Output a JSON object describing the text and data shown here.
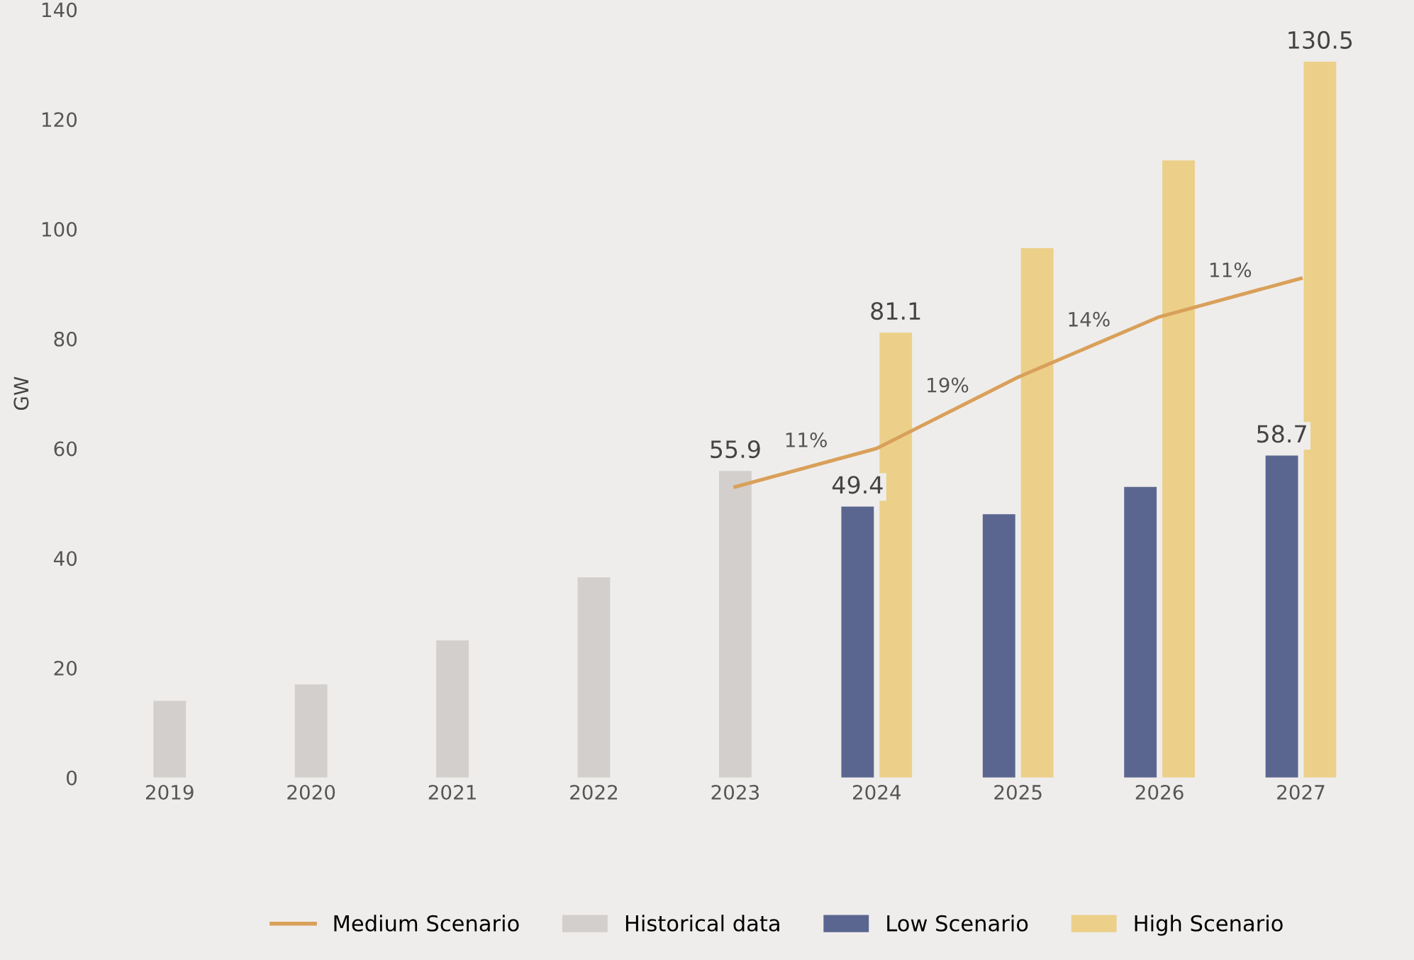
{
  "chart_data": {
    "type": "bar",
    "ylabel": "GW",
    "categories": [
      "2019",
      "2020",
      "2021",
      "2022",
      "2023",
      "2024",
      "2025",
      "2026",
      "2027"
    ],
    "series": [
      {
        "name": "Medium Scenario",
        "type": "line",
        "color": "#d9a05a",
        "values": [
          null,
          null,
          null,
          null,
          53,
          60,
          73,
          84,
          91
        ]
      },
      {
        "name": "Historical data",
        "color": "#d3cfcc",
        "values": [
          14,
          17,
          25,
          36.5,
          55.9,
          null,
          null,
          null,
          null
        ],
        "value_labels": [
          null,
          null,
          null,
          null,
          "55.9",
          null,
          null,
          null,
          null
        ]
      },
      {
        "name": "Low Scenario",
        "color": "#5b6690",
        "values": [
          null,
          null,
          null,
          null,
          null,
          49.4,
          48,
          53,
          58.7
        ],
        "value_labels": [
          null,
          null,
          null,
          null,
          null,
          "49.4",
          null,
          null,
          "58.7"
        ]
      },
      {
        "name": "High Scenario",
        "color": "#ecd089",
        "values": [
          null,
          null,
          null,
          null,
          null,
          81.1,
          96.5,
          112.5,
          130.5
        ],
        "value_labels": [
          null,
          null,
          null,
          null,
          null,
          "81.1",
          null,
          null,
          "130.5"
        ]
      }
    ],
    "annotations": [
      "11%",
      "19%",
      "14%",
      "11%"
    ],
    "ylim": [
      0,
      140
    ],
    "yticks": [
      0,
      20,
      40,
      60,
      80,
      100,
      120,
      140
    ],
    "grid": false,
    "legend": "bottom"
  }
}
